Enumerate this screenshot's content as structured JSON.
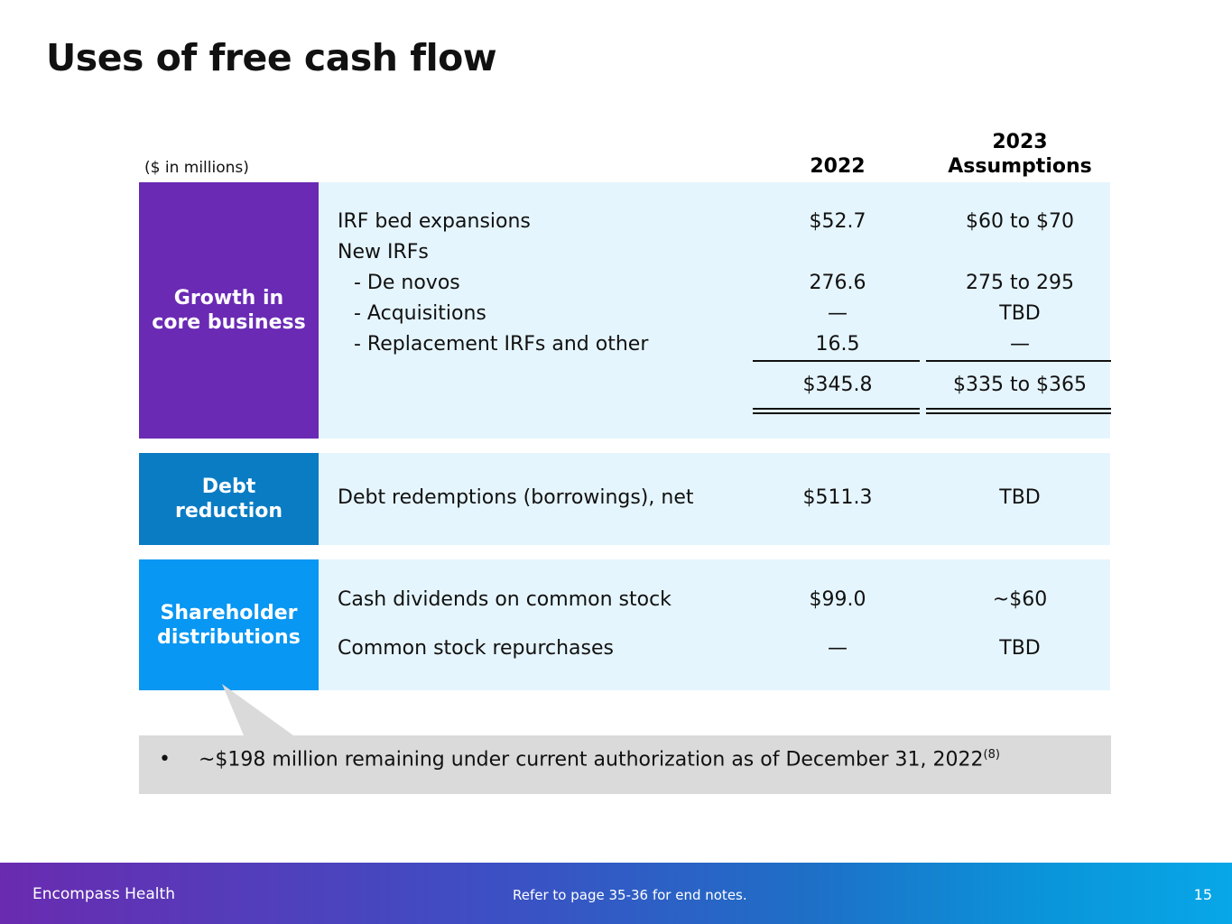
{
  "title": "Uses of free cash flow",
  "units_label": "($ in millions)",
  "columns": {
    "y2022": "2022",
    "y2023_line1": "2023",
    "y2023_line2": "Assumptions"
  },
  "growth": {
    "label_line1": "Growth in",
    "label_line2": "core business",
    "rows": [
      {
        "label": "IRF bed expansions",
        "v2022": "$52.7",
        "v2023": "$60 to $70"
      },
      {
        "label": "New IRFs",
        "v2022": "",
        "v2023": ""
      },
      {
        "label": "- De novos",
        "v2022": "276.6",
        "v2023": "275 to 295"
      },
      {
        "label": "- Acquisitions",
        "v2022": "—",
        "v2023": "TBD"
      },
      {
        "label": "- Replacement IRFs and other",
        "v2022": "16.5",
        "v2023": "—"
      }
    ],
    "total_2022": "$345.8",
    "total_2023": "$335 to $365"
  },
  "debt": {
    "label_line1": "Debt",
    "label_line2": "reduction",
    "row": {
      "label": "Debt redemptions (borrowings), net",
      "v2022": "$511.3",
      "v2023": "TBD"
    }
  },
  "shareholder": {
    "label_line1": "Shareholder",
    "label_line2": "distributions",
    "rows": [
      {
        "label": "Cash dividends on common stock",
        "v2022": "$99.0",
        "v2023": "~$60"
      },
      {
        "label": "Common stock repurchases",
        "v2022": "—",
        "v2023": "TBD"
      }
    ]
  },
  "callout": {
    "bullet": "•",
    "text": "~$198 million remaining under current authorization as of December 31, 2022",
    "footnote": "(8)"
  },
  "footer": {
    "brand": "Encompass Health",
    "note": "Refer to page 35-36 for end notes.",
    "page": "15"
  },
  "colors": {
    "growth": "#6a2ab4",
    "debt": "#0a7cc4",
    "shareholder": "#0897f2",
    "panel_bg": "#e5f5fd",
    "callout_bg": "#dadada"
  }
}
